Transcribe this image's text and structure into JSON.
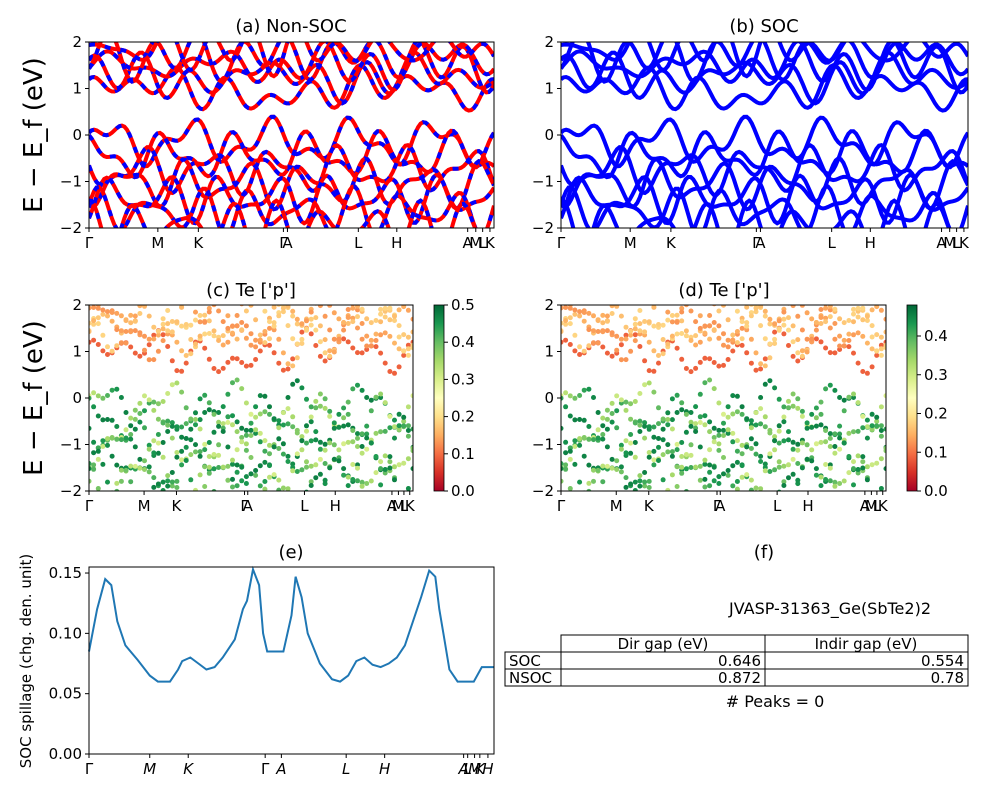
{
  "bands": {
    "ylabel": "E − E_f (eV)",
    "ylim": [
      -2,
      2
    ],
    "yticks": [
      "2",
      "1",
      "0",
      "−1",
      "−2"
    ],
    "kpath_labels": [
      "Γ",
      "M",
      "K",
      "Γ",
      "A",
      "L",
      "H",
      "A",
      "M",
      "L",
      "K"
    ],
    "colors": {
      "nonsoc_primary": "#ff0000",
      "nonsoc_secondary": "#0000ff",
      "soc": "#0000ff"
    }
  },
  "panels": {
    "a": {
      "title": "(a) Non-SOC"
    },
    "b": {
      "title": "(b) SOC"
    },
    "c": {
      "title": "(c)  Te ['p']"
    },
    "d": {
      "title": "(d) Te ['p']"
    },
    "e": {
      "title": "(e)"
    },
    "f": {
      "title": "(f)"
    }
  },
  "colorbar_c": {
    "ticks": [
      "0.5",
      "0.4",
      "0.3",
      "0.2",
      "0.1",
      "0.0"
    ],
    "range": [
      0,
      0.5
    ],
    "colormap": "RdYlGn"
  },
  "colorbar_d": {
    "ticks": [
      "0.4",
      "0.3",
      "0.2",
      "0.1",
      "0.0"
    ],
    "range": [
      0,
      0.48
    ],
    "colormap": "RdYlGn"
  },
  "chart_data": {
    "type": "line",
    "title": "(e)",
    "ylabel": "SOC spillage (chg. den. unit)",
    "ylim": [
      0,
      0.155
    ],
    "yticks": [
      "0.15",
      "0.10",
      "0.05",
      "0.00"
    ],
    "xtick_labels": [
      "Γ",
      "M",
      "K",
      "Γ",
      "A",
      "L",
      "H",
      "A",
      "L",
      "M",
      "K",
      "H"
    ],
    "color": "#1f77b4",
    "x": [
      0,
      0.02,
      0.04,
      0.055,
      0.07,
      0.09,
      0.12,
      0.15,
      0.17,
      0.2,
      0.22,
      0.23,
      0.25,
      0.27,
      0.29,
      0.31,
      0.33,
      0.36,
      0.38,
      0.39,
      0.405,
      0.42,
      0.43,
      0.44,
      0.46,
      0.48,
      0.5,
      0.51,
      0.525,
      0.54,
      0.57,
      0.6,
      0.62,
      0.64,
      0.66,
      0.68,
      0.7,
      0.72,
      0.74,
      0.76,
      0.78,
      0.8,
      0.82,
      0.84,
      0.855,
      0.865,
      0.875,
      0.89,
      0.91,
      0.93,
      0.95,
      0.97,
      1.0
    ],
    "y": [
      0.085,
      0.12,
      0.145,
      0.14,
      0.11,
      0.09,
      0.078,
      0.065,
      0.06,
      0.06,
      0.07,
      0.077,
      0.08,
      0.075,
      0.07,
      0.072,
      0.08,
      0.095,
      0.12,
      0.127,
      0.153,
      0.14,
      0.1,
      0.085,
      0.085,
      0.085,
      0.115,
      0.147,
      0.13,
      0.1,
      0.075,
      0.062,
      0.06,
      0.065,
      0.077,
      0.08,
      0.074,
      0.072,
      0.075,
      0.08,
      0.09,
      0.11,
      0.13,
      0.152,
      0.147,
      0.12,
      0.1,
      0.07,
      0.06,
      0.06,
      0.06,
      0.072,
      0.072
    ]
  },
  "table": {
    "title": "JVASP-31363_Ge(SbTe2)2",
    "columns": [
      "",
      "Dir gap (eV)",
      "Indir gap (eV)"
    ],
    "rows": [
      {
        "label": "SOC",
        "dir": "0.646",
        "indir": "0.554"
      },
      {
        "label": "NSOC",
        "dir": "0.872",
        "indir": "0.78"
      }
    ],
    "footer": "# Peaks = 0"
  }
}
